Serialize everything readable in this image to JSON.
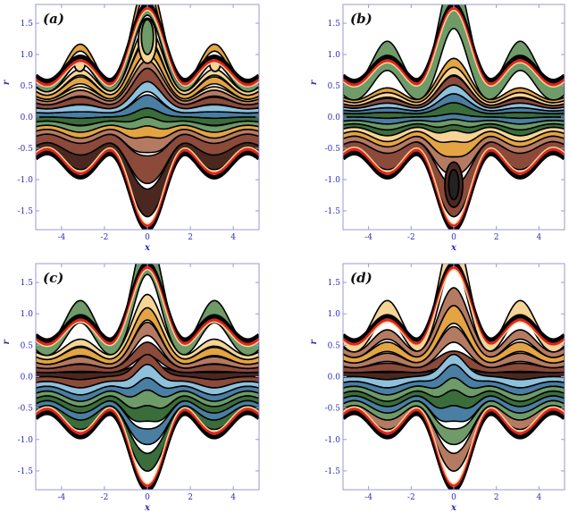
{
  "chart_data": [
    {
      "type": "area",
      "panel_label": "(a)",
      "xlabel": "x",
      "ylabel": "r",
      "xlim": [
        -5.2,
        5.2
      ],
      "ylim": [
        -1.8,
        1.8
      ],
      "xticks": [
        "-4",
        "-2",
        "0",
        "2",
        "4"
      ],
      "yticks": [
        "-1.5",
        "-1.0",
        "-0.5",
        "0.0",
        "0.5",
        "1.0",
        "1.5"
      ],
      "grid": false,
      "bands": [
        {
          "lo": 0.0,
          "hi": 0.12,
          "c0": 0.1,
          "c1": -0.02,
          "fill": "#4a7ea3"
        },
        {
          "lo": 0.12,
          "hi": 0.24,
          "c0": 0.14,
          "c1": -0.03,
          "fill": "#8ec1dc"
        },
        {
          "lo": 0.24,
          "hi": 0.36,
          "c0": 0.1,
          "c1": -0.02,
          "fill": "#8b4a3a"
        },
        {
          "lo": 0.36,
          "hi": 0.46,
          "c0": 0.08,
          "c1": 0.0,
          "fill": "#b57a62"
        },
        {
          "lo": 0.46,
          "hi": 0.52,
          "c0": 0.05,
          "c1": 0.0,
          "fill": "#f5d496"
        },
        {
          "lo": 0.52,
          "hi": 0.64,
          "c0": 0.0,
          "c1": 0.05,
          "fill": "#e3a443"
        },
        {
          "lo": 0.64,
          "hi": 0.74,
          "c0": 0.0,
          "c1": 0.08,
          "fill": "#f5d496"
        },
        {
          "lo": 0.74,
          "hi": 0.88,
          "c0": 0.0,
          "c1": 0.18,
          "fill": "#6e9b68"
        },
        {
          "lo": 0.88,
          "hi": 1.0,
          "c0": 0.0,
          "c1": 0.25,
          "fill": "#e3a443"
        },
        {
          "lo": -0.12,
          "hi": 0.0,
          "c0": 0.1,
          "c1": -0.02,
          "fill": "#3a6d3a"
        },
        {
          "lo": -0.24,
          "hi": -0.12,
          "c0": 0.15,
          "c1": -0.03,
          "fill": "#6e9b68"
        },
        {
          "lo": -0.36,
          "hi": -0.24,
          "c0": 0.18,
          "c1": -0.02,
          "fill": "#e3a443"
        },
        {
          "lo": -0.5,
          "hi": -0.36,
          "c0": 0.18,
          "c1": 0.0,
          "fill": "#b57a62"
        },
        {
          "lo": -0.75,
          "hi": -0.5,
          "c0": 0.1,
          "c1": 0.05,
          "fill": "#8b4a3a"
        },
        {
          "lo": -1.0,
          "hi": -0.75,
          "c0": 0.0,
          "c1": 0.1,
          "fill": "#4a2820"
        }
      ],
      "islands": [
        {
          "x": 0.0,
          "y": 1.22,
          "rx": 0.42,
          "ry": 0.36,
          "fill": "#f5d496"
        },
        {
          "x": 0.0,
          "y": 1.28,
          "rx": 0.28,
          "ry": 0.28,
          "fill": "#6e9b68"
        },
        {
          "x": -3.15,
          "y": 0.85,
          "rx": 0.25,
          "ry": 0.12,
          "fill": "#f5d496"
        },
        {
          "x": 3.15,
          "y": 0.85,
          "rx": 0.25,
          "ry": 0.12,
          "fill": "#f5d496"
        }
      ]
    },
    {
      "type": "area",
      "panel_label": "(b)",
      "xlabel": "x",
      "ylabel": "r",
      "xlim": [
        -5.2,
        5.2
      ],
      "ylim": [
        -1.8,
        1.8
      ],
      "xticks": [
        "-4",
        "-2",
        "0",
        "2",
        "4"
      ],
      "yticks": [
        "-1.5",
        "-1.0",
        "-0.5",
        "0.0",
        "0.5",
        "1.0",
        "1.5"
      ],
      "grid": false,
      "bands": [
        {
          "lo": 0.0,
          "hi": 0.1,
          "c0": 0.05,
          "c1": -0.02,
          "fill": "#3a6d3a"
        },
        {
          "lo": 0.1,
          "hi": 0.18,
          "c0": 0.05,
          "c1": -0.02,
          "fill": "#4a7ea3"
        },
        {
          "lo": 0.18,
          "hi": 0.26,
          "c0": 0.05,
          "c1": -0.02,
          "fill": "#8ec1dc"
        },
        {
          "lo": 0.26,
          "hi": 0.34,
          "c0": 0.05,
          "c1": -0.02,
          "fill": "#8b4a3a"
        },
        {
          "lo": 0.34,
          "hi": 0.42,
          "c0": 0.04,
          "c1": 0.0,
          "fill": "#f5d496"
        },
        {
          "lo": 0.42,
          "hi": 0.5,
          "c0": 0.03,
          "c1": 0.0,
          "fill": "#e3a443"
        },
        {
          "lo": 0.5,
          "hi": 1.0,
          "c0": 0.0,
          "c1": 0.3,
          "fill": "#6e9b68"
        },
        {
          "lo": -0.1,
          "hi": 0.0,
          "c0": 0.05,
          "c1": -0.02,
          "fill": "#4a7ea3"
        },
        {
          "lo": -0.2,
          "hi": -0.1,
          "c0": 0.1,
          "c1": -0.02,
          "fill": "#6e9b68"
        },
        {
          "lo": -0.3,
          "hi": -0.2,
          "c0": 0.15,
          "c1": -0.02,
          "fill": "#3a6d3a"
        },
        {
          "lo": -0.42,
          "hi": -0.3,
          "c0": 0.2,
          "c1": -0.02,
          "fill": "#f5d496"
        },
        {
          "lo": -0.56,
          "hi": -0.42,
          "c0": 0.2,
          "c1": 0.0,
          "fill": "#e3a443"
        },
        {
          "lo": -0.72,
          "hi": -0.56,
          "c0": 0.15,
          "c1": 0.05,
          "fill": "#b57a62"
        },
        {
          "lo": -1.0,
          "hi": -0.72,
          "c0": 0.0,
          "c1": 0.1,
          "fill": "#8b4a3a"
        }
      ],
      "islands": [
        {
          "x": 0.0,
          "y": -1.08,
          "rx": 0.42,
          "ry": 0.36,
          "fill": "#4a2820"
        },
        {
          "x": 0.0,
          "y": -1.08,
          "rx": 0.24,
          "ry": 0.24,
          "fill": "#222222"
        }
      ]
    },
    {
      "type": "area",
      "panel_label": "(c)",
      "xlabel": "x",
      "ylabel": "r",
      "xlim": [
        -5.2,
        5.2
      ],
      "ylim": [
        -1.8,
        1.8
      ],
      "xticks": [
        "-4",
        "-2",
        "0",
        "2",
        "4"
      ],
      "yticks": [
        "-1.5",
        "-1.0",
        "-0.5",
        "0.0",
        "0.5",
        "1.0",
        "1.5"
      ],
      "grid": false,
      "bands": [
        {
          "lo": 0.0,
          "hi": 0.12,
          "c0": 0.05,
          "c1": -0.05,
          "fill": "#4a2820"
        },
        {
          "lo": 0.12,
          "hi": 0.24,
          "c0": 0.1,
          "c1": -0.03,
          "fill": "#8b4a3a"
        },
        {
          "lo": 0.24,
          "hi": 0.36,
          "c0": 0.15,
          "c1": -0.02,
          "fill": "#b57a62"
        },
        {
          "lo": 0.36,
          "hi": 0.5,
          "c0": 0.15,
          "c1": 0.0,
          "fill": "#e3a443"
        },
        {
          "lo": 0.5,
          "hi": 0.62,
          "c0": 0.1,
          "c1": 0.02,
          "fill": "#f5d496"
        },
        {
          "lo": 0.62,
          "hi": 1.0,
          "c0": 0.0,
          "c1": 0.3,
          "fill": "#6e9b68"
        },
        {
          "lo": -0.14,
          "hi": 0.0,
          "c0": 0.25,
          "c1": -0.05,
          "fill": "#8b4a3a"
        },
        {
          "lo": -0.28,
          "hi": -0.14,
          "c0": 0.3,
          "c1": -0.05,
          "fill": "#8ec1dc"
        },
        {
          "lo": -0.42,
          "hi": -0.28,
          "c0": 0.3,
          "c1": -0.03,
          "fill": "#4a7ea3"
        },
        {
          "lo": -0.56,
          "hi": -0.42,
          "c0": 0.3,
          "c1": 0.0,
          "fill": "#6e9b68"
        },
        {
          "lo": -0.7,
          "hi": -0.56,
          "c0": 0.25,
          "c1": 0.05,
          "fill": "#3a6d3a"
        },
        {
          "lo": -0.84,
          "hi": -0.7,
          "c0": 0.15,
          "c1": 0.08,
          "fill": "#4a7ea3"
        },
        {
          "lo": -1.0,
          "hi": -0.84,
          "c0": 0.05,
          "c1": 0.1,
          "fill": "#3a6d3a"
        }
      ],
      "islands": []
    },
    {
      "type": "area",
      "panel_label": "(d)",
      "xlabel": "x",
      "ylabel": "r",
      "xlim": [
        -5.2,
        5.2
      ],
      "ylim": [
        -1.8,
        1.8
      ],
      "xticks": [
        "-4",
        "-2",
        "0",
        "2",
        "4"
      ],
      "yticks": [
        "-1.5",
        "-1.0",
        "-0.5",
        "0.0",
        "0.5",
        "1.0",
        "1.5"
      ],
      "grid": false,
      "bands": [
        {
          "lo": 0.0,
          "hi": 0.12,
          "c0": -0.05,
          "c1": -0.05,
          "fill": "#4a2820"
        },
        {
          "lo": 0.12,
          "hi": 0.26,
          "c0": 0.0,
          "c1": -0.03,
          "fill": "#8b4a3a"
        },
        {
          "lo": 0.26,
          "hi": 0.4,
          "c0": 0.05,
          "c1": 0.0,
          "fill": "#b57a62"
        },
        {
          "lo": 0.4,
          "hi": 0.56,
          "c0": 0.05,
          "c1": 0.03,
          "fill": "#e3a443"
        },
        {
          "lo": 0.56,
          "hi": 0.72,
          "c0": 0.0,
          "c1": 0.08,
          "fill": "#b57a62"
        },
        {
          "lo": 0.72,
          "hi": 1.0,
          "c0": 0.0,
          "c1": 0.3,
          "fill": "#f5d496"
        },
        {
          "lo": -0.14,
          "hi": 0.0,
          "c0": 0.25,
          "c1": -0.05,
          "fill": "#8ec1dc"
        },
        {
          "lo": -0.28,
          "hi": -0.14,
          "c0": 0.3,
          "c1": -0.05,
          "fill": "#4a7ea3"
        },
        {
          "lo": -0.42,
          "hi": -0.28,
          "c0": 0.3,
          "c1": -0.03,
          "fill": "#6e9b68"
        },
        {
          "lo": -0.56,
          "hi": -0.42,
          "c0": 0.3,
          "c1": 0.0,
          "fill": "#3a6d3a"
        },
        {
          "lo": -0.7,
          "hi": -0.56,
          "c0": 0.25,
          "c1": 0.05,
          "fill": "#4a7ea3"
        },
        {
          "lo": -0.84,
          "hi": -0.7,
          "c0": 0.15,
          "c1": 0.08,
          "fill": "#6e9b68"
        },
        {
          "lo": -1.0,
          "hi": -0.84,
          "c0": 0.05,
          "c1": 0.1,
          "fill": "#b57a62"
        }
      ],
      "islands": []
    }
  ],
  "colors": {
    "boundary_outer": "#000000",
    "boundary_inner": "#e3231b",
    "boundary_glow": "#f5d496",
    "tick_text": "#2f2fb5",
    "frame": "#9a9ad0"
  }
}
